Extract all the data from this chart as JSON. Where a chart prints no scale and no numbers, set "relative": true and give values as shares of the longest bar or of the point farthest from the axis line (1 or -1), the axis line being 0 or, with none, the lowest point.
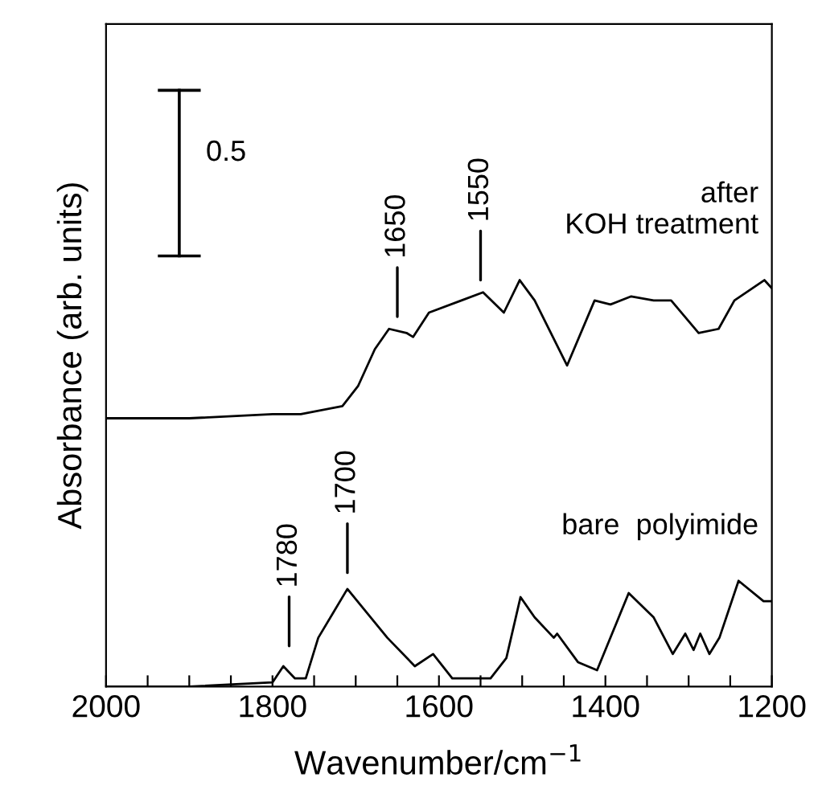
{
  "chart_data": {
    "type": "line",
    "relative": true,
    "xlabel": "Wavenumber/cm$^{−1}$",
    "ylabel": "Absorbance (arb. units)",
    "xlim": [
      2000,
      1200
    ],
    "xticks": [
      2000,
      {
        "value": 1950,
        "label": null
      },
      {
        "value": 1900,
        "label": null
      },
      {
        "value": 1850,
        "label": null
      },
      1800,
      {
        "value": 1750,
        "label": null
      },
      {
        "value": 1700,
        "label": null
      },
      {
        "value": 1650,
        "label": null
      },
      1600,
      {
        "value": 1550,
        "label": null
      },
      {
        "value": 1500,
        "label": null
      },
      {
        "value": 1450,
        "label": null
      },
      1400,
      {
        "value": 1350,
        "label": null
      },
      {
        "value": 1300,
        "label": null
      },
      {
        "value": 1250,
        "label": null
      },
      1200
    ],
    "tick_labels": "x",
    "grid": false,
    "legend": false,
    "marker": "none",
    "line_style": "solid",
    "series": [
      {
        "name": "after\nKOH treatment",
        "color": "#000000",
        "x": [
          2000,
          1900,
          1800,
          1766,
          1716,
          1697,
          1677,
          1660,
          1639,
          1631,
          1612,
          1573,
          1547,
          1522,
          1503,
          1485,
          1446,
          1413,
          1394,
          1369,
          1342,
          1321,
          1288,
          1264,
          1245,
          1209,
          1200
        ],
        "values": [
          0.66,
          0.66,
          0.67,
          0.67,
          0.69,
          0.74,
          0.83,
          0.88,
          0.87,
          0.86,
          0.92,
          0.95,
          0.97,
          0.92,
          1.0,
          0.95,
          0.79,
          0.95,
          0.94,
          0.96,
          0.95,
          0.95,
          0.87,
          0.88,
          0.95,
          1.0,
          0.98
        ]
      },
      {
        "name": "bare  polyimide",
        "color": "#000000",
        "x": [
          2000,
          1900,
          1800,
          1787,
          1773,
          1760,
          1745,
          1710,
          1694,
          1662,
          1629,
          1607,
          1584,
          1538,
          1519,
          1502,
          1485,
          1462,
          1458,
          1433,
          1410,
          1372,
          1342,
          1319,
          1304,
          1294,
          1286,
          1275,
          1263,
          1240,
          1210,
          1200
        ],
        "values": [
          0.0,
          0.0,
          0.01,
          0.05,
          0.02,
          0.02,
          0.12,
          0.24,
          0.2,
          0.12,
          0.05,
          0.08,
          0.02,
          0.02,
          0.07,
          0.22,
          0.17,
          0.12,
          0.13,
          0.06,
          0.04,
          0.23,
          0.17,
          0.08,
          0.13,
          0.09,
          0.13,
          0.08,
          0.12,
          0.26,
          0.21,
          0.21
        ]
      }
    ],
    "annotations": [
      {
        "text": "1650",
        "x": 1650,
        "y": 0.87
      },
      {
        "text": "1550",
        "x": 1550,
        "y": 0.96
      },
      {
        "text": "1780",
        "x": 1780,
        "y": 0.06
      },
      {
        "text": "1700",
        "x": 1710,
        "y": 0.24
      },
      "0.5"
    ]
  }
}
